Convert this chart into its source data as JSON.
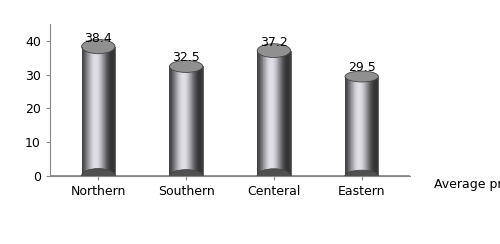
{
  "categories": [
    "Northern",
    "Southern",
    "Centeral",
    "Eastern"
  ],
  "values": [
    38.4,
    32.5,
    37.2,
    29.5
  ],
  "ylim": [
    0,
    45
  ],
  "yticks": [
    0,
    10,
    20,
    30,
    40
  ],
  "bar_width": 0.38,
  "axis_label": "Average prevalence",
  "legend_label": "Average prevalence",
  "value_fontsize": 9,
  "tick_fontsize": 9,
  "legend_fontsize": 9,
  "background_color": "#ffffff",
  "figsize": [
    5.0,
    2.44
  ],
  "dpi": 100
}
